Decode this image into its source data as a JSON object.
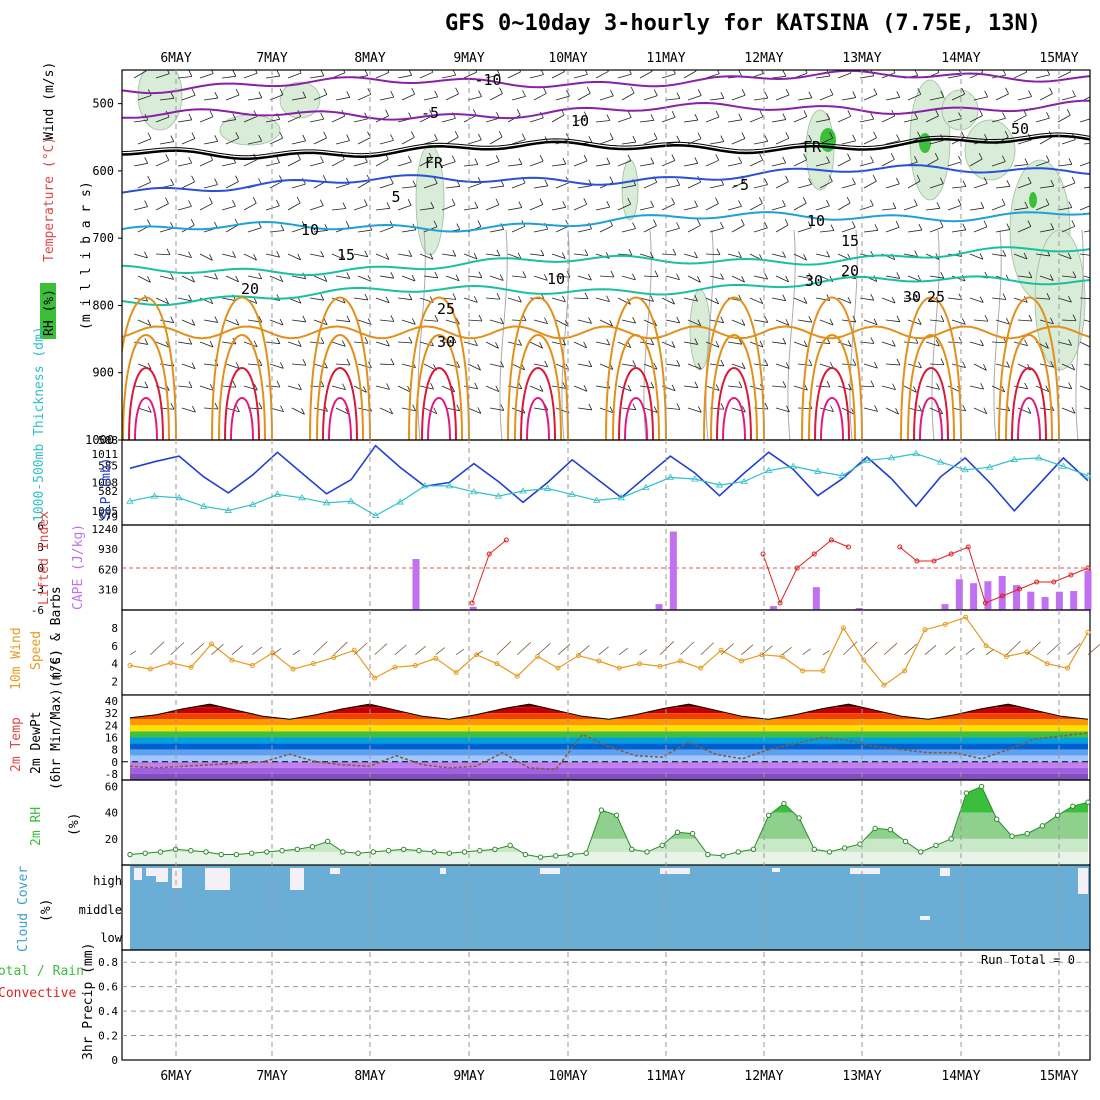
{
  "title": "GFS 0~10day 3-hourly for KATSINA (7.75E, 13N)",
  "dates": [
    "6MAY",
    "7MAY",
    "8MAY",
    "9MAY",
    "10MAY",
    "11MAY",
    "12MAY",
    "13MAY",
    "14MAY",
    "15MAY"
  ],
  "colors": {
    "purple": "#8a1fa8",
    "blue": "#2a4fd8",
    "cyan": "#1ea0d8",
    "teal": "#18c0a0",
    "orange": "#e2901a",
    "red": "#d81a3a",
    "rh_green": "#3bbf3b",
    "cloud": "#6aaed6",
    "precip_red": "#e02020",
    "cape": "#c070f0",
    "wind": "#e89a20",
    "slp": "#2040d0",
    "thk": "#30c0c8"
  },
  "panel_labels": {
    "wind": "Wind (m/s)",
    "temperature": "Temperature (°C)",
    "rh": "RH (%)",
    "millibars": "(m i l l i b a r s)",
    "thickness": "1000-500mb Thickness (dm)",
    "slp": "SLP (mb)",
    "lifted": "Lifted Index",
    "cape": "CAPE (J/kg)",
    "wind10": "10m Wind",
    "speed": "Speed",
    "barbs": "(m/s) & Barbs",
    "temp2m": "2m Temp",
    "dew2m": "2m DewPt",
    "minmax": "(6hr Min/Max) (°C)",
    "rh2m": "2m RH",
    "rh2m_unit": "(%)",
    "cloud": "Cloud Cover",
    "cloud_unit": "(%)",
    "precip_total": "Total / Rain",
    "precip_conv": "Convective",
    "precip_axis": "3hr Precip (mm)",
    "run_total": "Run Total = 0"
  },
  "chart_data": [
    {
      "type": "line",
      "title": "Upper-air cross section",
      "ylabel": "millibars",
      "ylim": [
        1000,
        450
      ],
      "yticks": [
        500,
        600,
        700,
        800,
        900,
        1000
      ],
      "contour_labels": [
        "-10",
        "-5",
        "FR",
        "5",
        "10",
        "15",
        "20",
        "25",
        "30",
        "10",
        "30",
        "50"
      ],
      "series": [
        {
          "name": "-10",
          "level_mb": 475
        },
        {
          "name": "-5",
          "level_mb": 520
        },
        {
          "name": "FR",
          "level_mb": 575
        },
        {
          "name": "5",
          "level_mb": 625
        },
        {
          "name": "10",
          "level_mb": 690
        },
        {
          "name": "15",
          "level_mb": 750
        },
        {
          "name": "20",
          "level_mb": 790
        },
        {
          "name": "25",
          "level_mb": 840
        },
        {
          "name": "30",
          "level_mb": 870
        }
      ]
    },
    {
      "type": "line",
      "ylabel": "Thickness / SLP",
      "y_left": [
        579,
        582,
        585,
        588
      ],
      "y_right": [
        1005,
        1008,
        1011
      ],
      "series": [
        {
          "name": "SLP (mb)",
          "values": [
            1009.5,
            1010.2,
            1010.8,
            1008.6,
            1006.9,
            1008.8,
            1011.2,
            1009.0,
            1006.8,
            1008.3,
            1011.9,
            1009.6,
            1007.6,
            1008.0,
            1010.0,
            1008.1,
            1005.9,
            1008.0,
            1010.4,
            1008.4,
            1006.4,
            1008.6,
            1010.8,
            1009.0,
            1006.6,
            1009.0,
            1011.2,
            1009.4,
            1006.6,
            1008.4,
            1010.7,
            1008.4,
            1005.5,
            1008.6,
            1010.6,
            1008.0,
            1005.0,
            1007.8,
            1010.6,
            1008.2
          ]
        },
        {
          "name": "Thickness (dm)",
          "values": [
            580.8,
            581.4,
            581.2,
            580.2,
            579.7,
            580.4,
            581.6,
            581.2,
            580.6,
            580.8,
            579.1,
            580.7,
            582.6,
            582.6,
            581.9,
            581.4,
            582.0,
            582.3,
            581.6,
            580.9,
            581.2,
            582.4,
            583.6,
            583.4,
            582.7,
            583.1,
            584.4,
            584.9,
            584.3,
            583.8,
            585.6,
            585.9,
            586.4,
            585.4,
            584.5,
            584.8,
            585.7,
            585.9,
            584.9,
            583.8
          ]
        }
      ]
    },
    {
      "type": "bar",
      "ylabel": "Lifted Index / CAPE",
      "y_left": [
        -6,
        -3,
        0,
        3,
        6
      ],
      "y_right": [
        310,
        620,
        930,
        1240
      ],
      "series": [
        {
          "name": "CAPE (J/kg)",
          "values": [
            0,
            0,
            0,
            0,
            0,
            0,
            0,
            0,
            0,
            0,
            0,
            0,
            0,
            0,
            0,
            0,
            0,
            0,
            0,
            0,
            780,
            0,
            0,
            0,
            50,
            0,
            0,
            0,
            0,
            0,
            0,
            0,
            0,
            0,
            0,
            0,
            0,
            90,
            1200,
            0,
            0,
            0,
            0,
            0,
            0,
            60,
            0,
            0,
            350,
            0,
            0,
            30,
            0,
            0,
            0,
            0,
            0,
            90,
            470,
            410,
            440,
            520,
            380,
            280,
            200,
            280,
            290,
            600
          ]
        },
        {
          "name": "Lifted Index",
          "values": [
            6,
            6,
            6,
            6,
            6,
            6,
            6,
            6,
            6,
            6,
            6,
            6,
            6,
            6,
            6,
            6,
            6,
            6,
            6,
            6,
            -5,
            2,
            4,
            6,
            6,
            6,
            6,
            6,
            6,
            6,
            6,
            6,
            6,
            6,
            6,
            6,
            6,
            2,
            -5,
            0,
            2,
            4,
            3,
            6,
            6,
            3,
            1,
            1,
            2,
            3,
            -5,
            -4,
            -3,
            -2,
            -2,
            -1,
            0
          ]
        }
      ]
    },
    {
      "type": "line",
      "ylabel": "10m Wind Speed (m/s)",
      "yticks": [
        2,
        4,
        6,
        8
      ],
      "series": [
        {
          "name": "10m Wind Speed",
          "values": [
            3.8,
            3.4,
            4.1,
            3.6,
            6.2,
            4.4,
            3.8,
            5.2,
            3.4,
            4.0,
            4.7,
            5.5,
            2.4,
            3.6,
            3.8,
            4.6,
            3.0,
            5.0,
            4.0,
            2.6,
            4.8,
            3.5,
            4.9,
            4.3,
            3.5,
            4.0,
            3.7,
            4.3,
            3.5,
            5.5,
            4.3,
            5.0,
            4.8,
            3.2,
            3.2,
            8.0,
            4.4,
            1.6,
            3.2,
            7.8,
            8.4,
            9.2,
            6.0,
            4.8,
            5.3,
            4.0,
            3.5,
            7.5
          ]
        }
      ]
    },
    {
      "type": "area",
      "ylabel": "2m Temp / DewPt (°C)",
      "yticks": [
        -8,
        0,
        8,
        16,
        24,
        32,
        40
      ],
      "series": [
        {
          "name": "2m Temp",
          "values": [
            29,
            31,
            35,
            38,
            34,
            30,
            28,
            31,
            35,
            38,
            34,
            30,
            28,
            31,
            35,
            38,
            34,
            30,
            28,
            31,
            35,
            38,
            34,
            30,
            28,
            31,
            35,
            38,
            34,
            30,
            28,
            31,
            35,
            38,
            34,
            30,
            28
          ]
        },
        {
          "name": "2m DewPt",
          "values": [
            -3,
            -4,
            -3,
            -2,
            -1,
            0,
            5,
            0,
            -2,
            -3,
            4,
            -2,
            -4,
            -3,
            6,
            -4,
            -5,
            18,
            10,
            4,
            3,
            13,
            5,
            2,
            8,
            12,
            16,
            14,
            10,
            8,
            6,
            6,
            2,
            8,
            15,
            17,
            19
          ]
        }
      ]
    },
    {
      "type": "area",
      "ylabel": "2m RH (%)",
      "yticks": [
        20,
        40,
        60
      ],
      "series": [
        {
          "name": "2m RH",
          "values": [
            8,
            9,
            10,
            12,
            11,
            10,
            8,
            8,
            9,
            10,
            11,
            12,
            14,
            18,
            10,
            9,
            10,
            11,
            12,
            11,
            10,
            9,
            10,
            11,
            12,
            15,
            8,
            6,
            7,
            8,
            9,
            42,
            38,
            12,
            10,
            15,
            25,
            24,
            8,
            7,
            10,
            12,
            38,
            47,
            36,
            12,
            10,
            13,
            16,
            28,
            27,
            18,
            10,
            15,
            20,
            55,
            60,
            35,
            22,
            24,
            30,
            38,
            45,
            48
          ]
        }
      ]
    },
    {
      "type": "heatmap",
      "ylabel": "Cloud Cover (%)",
      "yticks": [
        "high",
        "middle",
        "low"
      ]
    },
    {
      "type": "line",
      "ylabel": "3hr Precip (mm)",
      "ylim": [
        0,
        0.8
      ],
      "yticks": [
        0,
        0.2,
        0.4,
        0.6,
        0.8
      ],
      "series": [
        {
          "name": "Total / Rain",
          "values": [
            0,
            0,
            0,
            0,
            0,
            0,
            0,
            0,
            0,
            0
          ]
        },
        {
          "name": "Convective",
          "values": [
            0,
            0,
            0,
            0,
            0,
            0,
            0,
            0,
            0,
            0
          ]
        }
      ]
    }
  ]
}
